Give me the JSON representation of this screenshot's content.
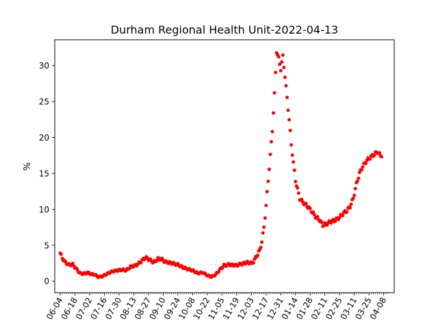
{
  "chart_data": {
    "type": "scatter",
    "title": "Durham Regional Health Unit-2022-04-13",
    "xlabel": "",
    "ylabel": "%",
    "x_start": "2021-06-04",
    "x_end": "2022-04-13",
    "ylim": [
      -1.6,
      33.6
    ],
    "yticks": [
      0,
      5,
      10,
      15,
      20,
      25,
      30
    ],
    "xtick_labels": [
      "06-04",
      "06-18",
      "07-02",
      "07-16",
      "07-30",
      "08-13",
      "08-27",
      "09-10",
      "09-24",
      "10-08",
      "10-22",
      "11-05",
      "11-19",
      "12-03",
      "12-17",
      "12-31",
      "01-14",
      "01-28",
      "02-11",
      "02-25",
      "03-11",
      "03-25",
      "04-08"
    ],
    "grid": false,
    "marker_color": "#ff0000",
    "anchors": [
      [
        "2021-06-04",
        3.9
      ],
      [
        "2021-06-06",
        3.2
      ],
      [
        "2021-06-09",
        2.6
      ],
      [
        "2021-06-12",
        2.3
      ],
      [
        "2021-06-16",
        2.3
      ],
      [
        "2021-06-20",
        1.6
      ],
      [
        "2021-06-23",
        1.1
      ],
      [
        "2021-06-26",
        1.0
      ],
      [
        "2021-06-30",
        1.2
      ],
      [
        "2021-07-03",
        1.0
      ],
      [
        "2021-07-07",
        0.9
      ],
      [
        "2021-07-10",
        0.6
      ],
      [
        "2021-07-13",
        0.6
      ],
      [
        "2021-07-17",
        0.9
      ],
      [
        "2021-07-21",
        1.2
      ],
      [
        "2021-07-25",
        1.4
      ],
      [
        "2021-07-29",
        1.5
      ],
      [
        "2021-08-02",
        1.6
      ],
      [
        "2021-08-06",
        1.5
      ],
      [
        "2021-08-10",
        2.0
      ],
      [
        "2021-08-15",
        2.2
      ],
      [
        "2021-08-19",
        2.6
      ],
      [
        "2021-08-24",
        3.3
      ],
      [
        "2021-08-28",
        3.0
      ],
      [
        "2021-09-01",
        2.6
      ],
      [
        "2021-09-05",
        3.1
      ],
      [
        "2021-09-08",
        3.1
      ],
      [
        "2021-09-12",
        2.7
      ],
      [
        "2021-09-18",
        2.5
      ],
      [
        "2021-09-24",
        2.3
      ],
      [
        "2021-09-29",
        1.9
      ],
      [
        "2021-10-03",
        1.7
      ],
      [
        "2021-10-08",
        1.5
      ],
      [
        "2021-10-13",
        1.1
      ],
      [
        "2021-10-18",
        1.2
      ],
      [
        "2021-10-22",
        0.8
      ],
      [
        "2021-10-26",
        0.6
      ],
      [
        "2021-10-30",
        0.9
      ],
      [
        "2021-11-03",
        1.6
      ],
      [
        "2021-11-07",
        2.2
      ],
      [
        "2021-11-12",
        2.3
      ],
      [
        "2021-11-18",
        2.2
      ],
      [
        "2021-11-24",
        2.4
      ],
      [
        "2021-11-29",
        2.6
      ],
      [
        "2021-12-04",
        2.5
      ],
      [
        "2021-12-08",
        3.5
      ],
      [
        "2021-12-11",
        4.3
      ],
      [
        "2021-12-13",
        5.5
      ],
      [
        "2021-12-15",
        7.5
      ],
      [
        "2021-12-17",
        10.5
      ],
      [
        "2021-12-19",
        14.0
      ],
      [
        "2021-12-21",
        17.5
      ],
      [
        "2021-12-23",
        21.0
      ],
      [
        "2021-12-25",
        26.0
      ],
      [
        "2021-12-27",
        32.0
      ],
      [
        "2021-12-29",
        31.0
      ],
      [
        "2021-12-31",
        29.5
      ],
      [
        "2022-01-02",
        31.3
      ],
      [
        "2022-01-04",
        28.5
      ],
      [
        "2022-01-06",
        25.5
      ],
      [
        "2022-01-08",
        22.5
      ],
      [
        "2022-01-10",
        19.0
      ],
      [
        "2022-01-12",
        16.5
      ],
      [
        "2022-01-14",
        14.0
      ],
      [
        "2022-01-16",
        12.8
      ],
      [
        "2022-01-18",
        11.5
      ],
      [
        "2022-01-21",
        11.0
      ],
      [
        "2022-01-25",
        10.5
      ],
      [
        "2022-01-29",
        9.8
      ],
      [
        "2022-02-02",
        9.0
      ],
      [
        "2022-02-06",
        8.5
      ],
      [
        "2022-02-09",
        7.8
      ],
      [
        "2022-02-13",
        8.0
      ],
      [
        "2022-02-17",
        8.3
      ],
      [
        "2022-02-21",
        8.5
      ],
      [
        "2022-02-25",
        8.9
      ],
      [
        "2022-03-01",
        9.5
      ],
      [
        "2022-03-04",
        9.8
      ],
      [
        "2022-03-07",
        10.4
      ],
      [
        "2022-03-10",
        11.5
      ],
      [
        "2022-03-13",
        13.5
      ],
      [
        "2022-03-16",
        15.0
      ],
      [
        "2022-03-19",
        16.0
      ],
      [
        "2022-03-23",
        16.8
      ],
      [
        "2022-03-27",
        17.3
      ],
      [
        "2022-04-02",
        18.0
      ],
      [
        "2022-04-06",
        17.3
      ]
    ]
  }
}
